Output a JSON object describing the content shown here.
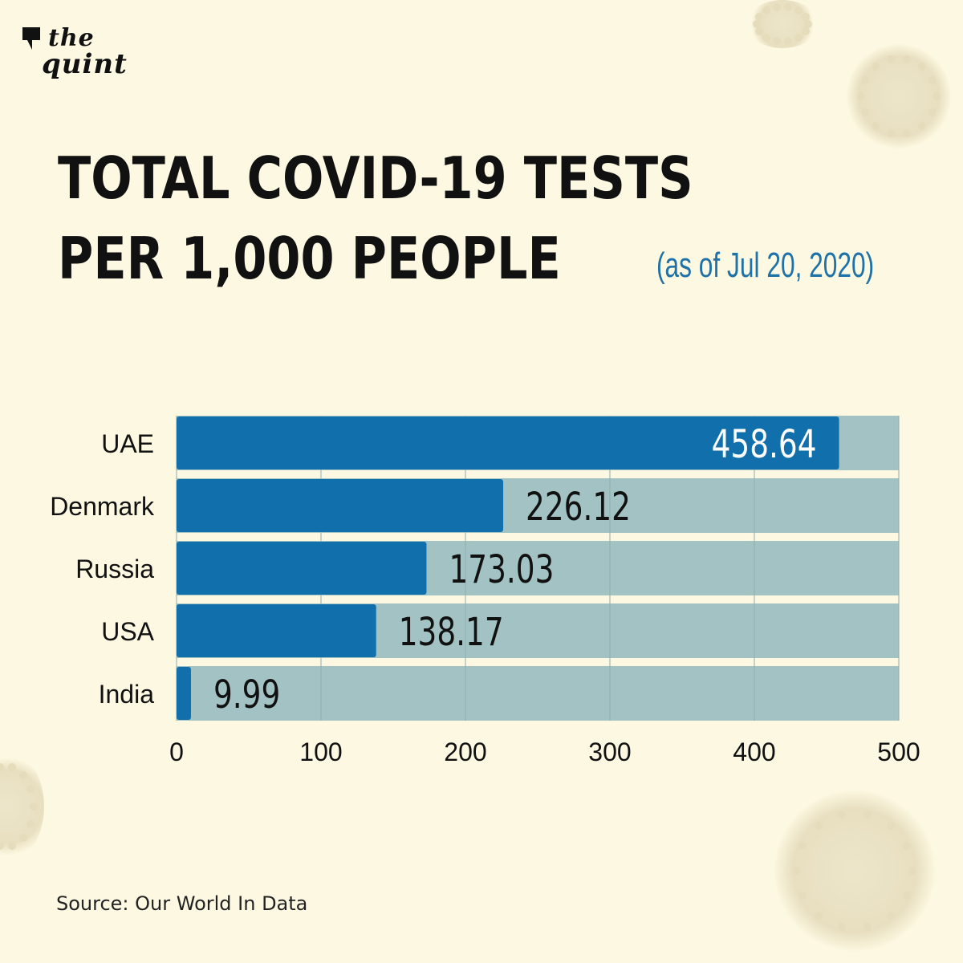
{
  "brand": {
    "line1": "the",
    "line2": "quint"
  },
  "header": {
    "title_line1": "TOTAL COVID-19 TESTS",
    "title_line2": "PER 1,000 PEOPLE",
    "subtitle": "(as of Jul 20, 2020)"
  },
  "footer": {
    "source": "Source: Our World In Data"
  },
  "colors": {
    "background": "#fdf8e2",
    "bar": "#1170ab",
    "track": "#a3c2c4",
    "subtitle": "#1f72a8"
  },
  "chart_data": {
    "type": "bar",
    "orientation": "horizontal",
    "categories": [
      "UAE",
      "Denmark",
      "Russia",
      "USA",
      "India"
    ],
    "values": [
      458.64,
      226.12,
      173.03,
      138.17,
      9.99
    ],
    "value_labels": [
      "458.64",
      "226.12",
      "173.03",
      "138.17",
      "9.99"
    ],
    "xlim": [
      0,
      500
    ],
    "xticks": [
      0,
      100,
      200,
      300,
      400,
      500
    ],
    "grid": true
  }
}
